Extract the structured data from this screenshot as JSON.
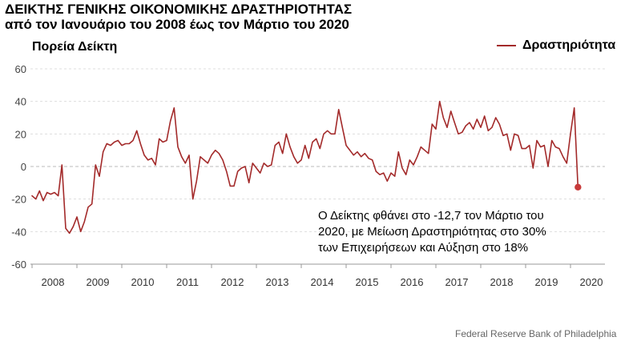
{
  "title_lines": [
    "ΔΕΙΚΤΗΣ ΓΕΝΙΚΗΣ ΟΙΚΟΝΟΜΙΚΗΣ ΔΡΑΣΤΗΡΙΟΤΗΤΑΣ",
    "από τον Ιανουάριο του 2008 έως τον Μάρτιο του 2020"
  ],
  "source": "Federal Reserve Bank of Philadelphia",
  "annotation_lines": [
    "Ο Δείκτης φθάνει στο -12,7 τον Μάρτιο του",
    "2020, με Μείωση Δραστηριότητας στο 30%",
    "των Επιχειρήσεων και Αύξηση στο 18%"
  ],
  "chart_data": {
    "type": "line",
    "title": "ΔΕΙΚΤΗΣ ΓΕΝΙΚΗΣ ΟΙΚΟΝΟΜΙΚΗΣ ΔΡΑΣΤΗΡΙΟΤΗΤΑΣ από τον Ιανουάριο του 2008 έως τον Μάρτιο του 2020",
    "ylabel": "Πορεία  Δείκτη",
    "xlabel": "",
    "ylim": [
      -60,
      60
    ],
    "yticks": [
      -60,
      -40,
      -20,
      0,
      20,
      40,
      60
    ],
    "xticks": [
      "2008",
      "2009",
      "2010",
      "2011",
      "2012",
      "2013",
      "2014",
      "2015",
      "2016",
      "2017",
      "2018",
      "2019",
      "2020"
    ],
    "legend": {
      "position": "top-right",
      "entries": [
        "Δραστηριότητα"
      ]
    },
    "line_color": "#a32a2a",
    "highlight": {
      "x": "2020-03",
      "y": -12.7
    },
    "series": [
      {
        "name": "Δραστηριότητα",
        "x_start": "2008-01",
        "frequency": "monthly",
        "values": [
          -18,
          -20,
          -15,
          -21,
          -16,
          -17,
          -16,
          -18,
          1,
          -38,
          -41,
          -37,
          -31,
          -40,
          -34,
          -25,
          -23,
          1,
          -6,
          9,
          14,
          13,
          15,
          16,
          13,
          14,
          14,
          16,
          22,
          14,
          7,
          4,
          5,
          1,
          17,
          15,
          16,
          28,
          36,
          12,
          6,
          2,
          7,
          -20,
          -9,
          6,
          4,
          2,
          7,
          10,
          8,
          4,
          -3,
          -12,
          -12,
          -3,
          -1,
          0,
          -10,
          2,
          -1,
          -4,
          2,
          0,
          1,
          13,
          15,
          8,
          20,
          12,
          6,
          2,
          4,
          13,
          5,
          15,
          17,
          11,
          20,
          22,
          20,
          20,
          35,
          24,
          13,
          10,
          7,
          9,
          6,
          8,
          5,
          4,
          -3,
          -5,
          -4,
          -9,
          -4,
          -6,
          9,
          -1,
          -5,
          4,
          1,
          6,
          12,
          10,
          8,
          26,
          23,
          40,
          30,
          24,
          34,
          27,
          20,
          21,
          25,
          27,
          23,
          29,
          24,
          31,
          22,
          24,
          30,
          26,
          19,
          20,
          10,
          20,
          19,
          11,
          11,
          13,
          -1,
          16,
          12,
          13,
          0,
          16,
          12,
          11,
          6,
          2,
          20,
          36,
          -12.7
        ]
      }
    ]
  }
}
